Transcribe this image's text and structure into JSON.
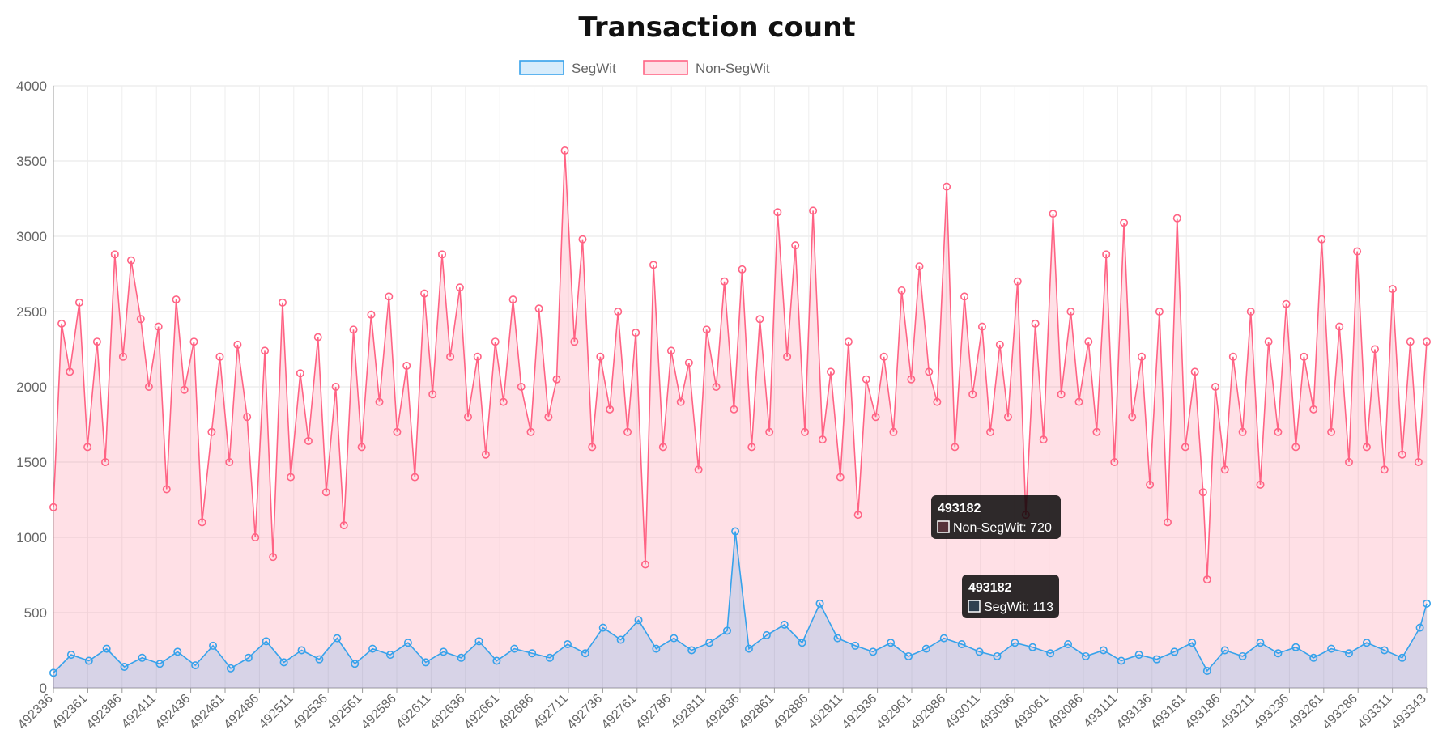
{
  "chart_data": {
    "type": "line",
    "title": "Transaction count",
    "xlabel": "",
    "ylabel": "",
    "ylim": [
      0,
      4000
    ],
    "yticks": [
      0,
      500,
      1000,
      1500,
      2000,
      2500,
      3000,
      3500,
      4000
    ],
    "x_tick_labels": [
      "492336",
      "492361",
      "492386",
      "492411",
      "492436",
      "492461",
      "492486",
      "492511",
      "492536",
      "492561",
      "492586",
      "492611",
      "492636",
      "492661",
      "492686",
      "492711",
      "492736",
      "492761",
      "492786",
      "492811",
      "492836",
      "492861",
      "492886",
      "492911",
      "492936",
      "492961",
      "492986",
      "493011",
      "493036",
      "493061",
      "493086",
      "493111",
      "493136",
      "493161",
      "493186",
      "493211",
      "493236",
      "493261",
      "493286",
      "493311",
      "493343"
    ],
    "x_range": [
      492336,
      493343
    ],
    "grid": true,
    "legend_position": "top",
    "series": [
      {
        "name": "SegWit",
        "color": "#36a2eb",
        "fill": "rgba(54,162,235,0.2)",
        "points": [
          [
            492336,
            100
          ],
          [
            492349,
            220
          ],
          [
            492362,
            180
          ],
          [
            492375,
            260
          ],
          [
            492388,
            140
          ],
          [
            492401,
            200
          ],
          [
            492414,
            160
          ],
          [
            492427,
            240
          ],
          [
            492440,
            150
          ],
          [
            492453,
            280
          ],
          [
            492466,
            130
          ],
          [
            492479,
            200
          ],
          [
            492492,
            310
          ],
          [
            492505,
            170
          ],
          [
            492518,
            250
          ],
          [
            492531,
            190
          ],
          [
            492544,
            330
          ],
          [
            492557,
            160
          ],
          [
            492570,
            260
          ],
          [
            492583,
            220
          ],
          [
            492596,
            300
          ],
          [
            492609,
            170
          ],
          [
            492622,
            240
          ],
          [
            492635,
            200
          ],
          [
            492648,
            310
          ],
          [
            492661,
            180
          ],
          [
            492674,
            260
          ],
          [
            492687,
            230
          ],
          [
            492700,
            200
          ],
          [
            492713,
            290
          ],
          [
            492726,
            230
          ],
          [
            492739,
            400
          ],
          [
            492752,
            320
          ],
          [
            492765,
            450
          ],
          [
            492778,
            260
          ],
          [
            492791,
            330
          ],
          [
            492804,
            250
          ],
          [
            492817,
            300
          ],
          [
            492830,
            380
          ],
          [
            492836,
            1040
          ],
          [
            492846,
            260
          ],
          [
            492859,
            350
          ],
          [
            492872,
            420
          ],
          [
            492885,
            300
          ],
          [
            492898,
            560
          ],
          [
            492911,
            330
          ],
          [
            492924,
            280
          ],
          [
            492937,
            240
          ],
          [
            492950,
            300
          ],
          [
            492963,
            210
          ],
          [
            492976,
            260
          ],
          [
            492989,
            330
          ],
          [
            493002,
            290
          ],
          [
            493015,
            240
          ],
          [
            493028,
            210
          ],
          [
            493041,
            300
          ],
          [
            493054,
            270
          ],
          [
            493067,
            230
          ],
          [
            493080,
            290
          ],
          [
            493093,
            210
          ],
          [
            493106,
            250
          ],
          [
            493119,
            180
          ],
          [
            493132,
            220
          ],
          [
            493145,
            190
          ],
          [
            493158,
            240
          ],
          [
            493171,
            300
          ],
          [
            493182,
            113
          ],
          [
            493195,
            250
          ],
          [
            493208,
            210
          ],
          [
            493221,
            300
          ],
          [
            493234,
            230
          ],
          [
            493247,
            270
          ],
          [
            493260,
            200
          ],
          [
            493273,
            260
          ],
          [
            493286,
            230
          ],
          [
            493299,
            300
          ],
          [
            493312,
            250
          ],
          [
            493325,
            200
          ],
          [
            493338,
            400
          ],
          [
            493343,
            560
          ]
        ]
      },
      {
        "name": "Non-SegWit",
        "color": "#ff6384",
        "fill": "rgba(255,99,132,0.2)",
        "points": [
          [
            492336,
            1200
          ],
          [
            492342,
            2420
          ],
          [
            492348,
            2100
          ],
          [
            492355,
            2560
          ],
          [
            492361,
            1600
          ],
          [
            492368,
            2300
          ],
          [
            492374,
            1500
          ],
          [
            492381,
            2880
          ],
          [
            492387,
            2200
          ],
          [
            492393,
            2840
          ],
          [
            492400,
            2450
          ],
          [
            492406,
            2000
          ],
          [
            492413,
            2400
          ],
          [
            492419,
            1320
          ],
          [
            492426,
            2580
          ],
          [
            492432,
            1980
          ],
          [
            492439,
            2300
          ],
          [
            492445,
            1100
          ],
          [
            492452,
            1700
          ],
          [
            492458,
            2200
          ],
          [
            492465,
            1500
          ],
          [
            492471,
            2280
          ],
          [
            492478,
            1800
          ],
          [
            492484,
            1000
          ],
          [
            492491,
            2240
          ],
          [
            492497,
            870
          ],
          [
            492504,
            2560
          ],
          [
            492510,
            1400
          ],
          [
            492517,
            2090
          ],
          [
            492523,
            1640
          ],
          [
            492530,
            2330
          ],
          [
            492536,
            1300
          ],
          [
            492543,
            2000
          ],
          [
            492549,
            1080
          ],
          [
            492556,
            2380
          ],
          [
            492562,
            1600
          ],
          [
            492569,
            2480
          ],
          [
            492575,
            1900
          ],
          [
            492582,
            2600
          ],
          [
            492588,
            1700
          ],
          [
            492595,
            2140
          ],
          [
            492601,
            1400
          ],
          [
            492608,
            2620
          ],
          [
            492614,
            1950
          ],
          [
            492621,
            2880
          ],
          [
            492627,
            2200
          ],
          [
            492634,
            2660
          ],
          [
            492640,
            1800
          ],
          [
            492647,
            2200
          ],
          [
            492653,
            1550
          ],
          [
            492660,
            2300
          ],
          [
            492666,
            1900
          ],
          [
            492673,
            2580
          ],
          [
            492679,
            2000
          ],
          [
            492686,
            1700
          ],
          [
            492692,
            2520
          ],
          [
            492699,
            1800
          ],
          [
            492705,
            2050
          ],
          [
            492711,
            3570
          ],
          [
            492718,
            2300
          ],
          [
            492724,
            2980
          ],
          [
            492731,
            1600
          ],
          [
            492737,
            2200
          ],
          [
            492744,
            1850
          ],
          [
            492750,
            2500
          ],
          [
            492757,
            1700
          ],
          [
            492763,
            2360
          ],
          [
            492770,
            820
          ],
          [
            492776,
            2810
          ],
          [
            492783,
            1600
          ],
          [
            492789,
            2240
          ],
          [
            492796,
            1900
          ],
          [
            492802,
            2160
          ],
          [
            492809,
            1450
          ],
          [
            492815,
            2380
          ],
          [
            492822,
            2000
          ],
          [
            492828,
            2700
          ],
          [
            492835,
            1850
          ],
          [
            492841,
            2780
          ],
          [
            492848,
            1600
          ],
          [
            492854,
            2450
          ],
          [
            492861,
            1700
          ],
          [
            492867,
            3160
          ],
          [
            492874,
            2200
          ],
          [
            492880,
            2940
          ],
          [
            492887,
            1700
          ],
          [
            492893,
            3170
          ],
          [
            492900,
            1650
          ],
          [
            492906,
            2100
          ],
          [
            492913,
            1400
          ],
          [
            492919,
            2300
          ],
          [
            492926,
            1150
          ],
          [
            492932,
            2050
          ],
          [
            492939,
            1800
          ],
          [
            492945,
            2200
          ],
          [
            492952,
            1700
          ],
          [
            492958,
            2640
          ],
          [
            492965,
            2050
          ],
          [
            492971,
            2800
          ],
          [
            492978,
            2100
          ],
          [
            492984,
            1900
          ],
          [
            492991,
            3330
          ],
          [
            492997,
            1600
          ],
          [
            493004,
            2600
          ],
          [
            493010,
            1950
          ],
          [
            493017,
            2400
          ],
          [
            493023,
            1700
          ],
          [
            493030,
            2280
          ],
          [
            493036,
            1800
          ],
          [
            493043,
            2700
          ],
          [
            493049,
            1150
          ],
          [
            493056,
            2420
          ],
          [
            493062,
            1650
          ],
          [
            493069,
            3150
          ],
          [
            493075,
            1950
          ],
          [
            493082,
            2500
          ],
          [
            493088,
            1900
          ],
          [
            493095,
            2300
          ],
          [
            493101,
            1700
          ],
          [
            493108,
            2880
          ],
          [
            493114,
            1500
          ],
          [
            493121,
            3090
          ],
          [
            493127,
            1800
          ],
          [
            493134,
            2200
          ],
          [
            493140,
            1350
          ],
          [
            493147,
            2500
          ],
          [
            493153,
            1100
          ],
          [
            493160,
            3120
          ],
          [
            493166,
            1600
          ],
          [
            493173,
            2100
          ],
          [
            493179,
            1300
          ],
          [
            493182,
            720
          ],
          [
            493188,
            2000
          ],
          [
            493195,
            1450
          ],
          [
            493201,
            2200
          ],
          [
            493208,
            1700
          ],
          [
            493214,
            2500
          ],
          [
            493221,
            1350
          ],
          [
            493227,
            2300
          ],
          [
            493234,
            1700
          ],
          [
            493240,
            2550
          ],
          [
            493247,
            1600
          ],
          [
            493253,
            2200
          ],
          [
            493260,
            1850
          ],
          [
            493266,
            2980
          ],
          [
            493273,
            1700
          ],
          [
            493279,
            2400
          ],
          [
            493286,
            1500
          ],
          [
            493292,
            2900
          ],
          [
            493299,
            1600
          ],
          [
            493305,
            2250
          ],
          [
            493312,
            1450
          ],
          [
            493318,
            2650
          ],
          [
            493325,
            1550
          ],
          [
            493331,
            2300
          ],
          [
            493337,
            1500
          ],
          [
            493343,
            2300
          ]
        ]
      }
    ],
    "tooltips": [
      {
        "title": "493182",
        "label": "Non-SegWit: 720",
        "series": "Non-SegWit"
      },
      {
        "title": "493182",
        "label": "SegWit: 113",
        "series": "SegWit"
      }
    ]
  }
}
